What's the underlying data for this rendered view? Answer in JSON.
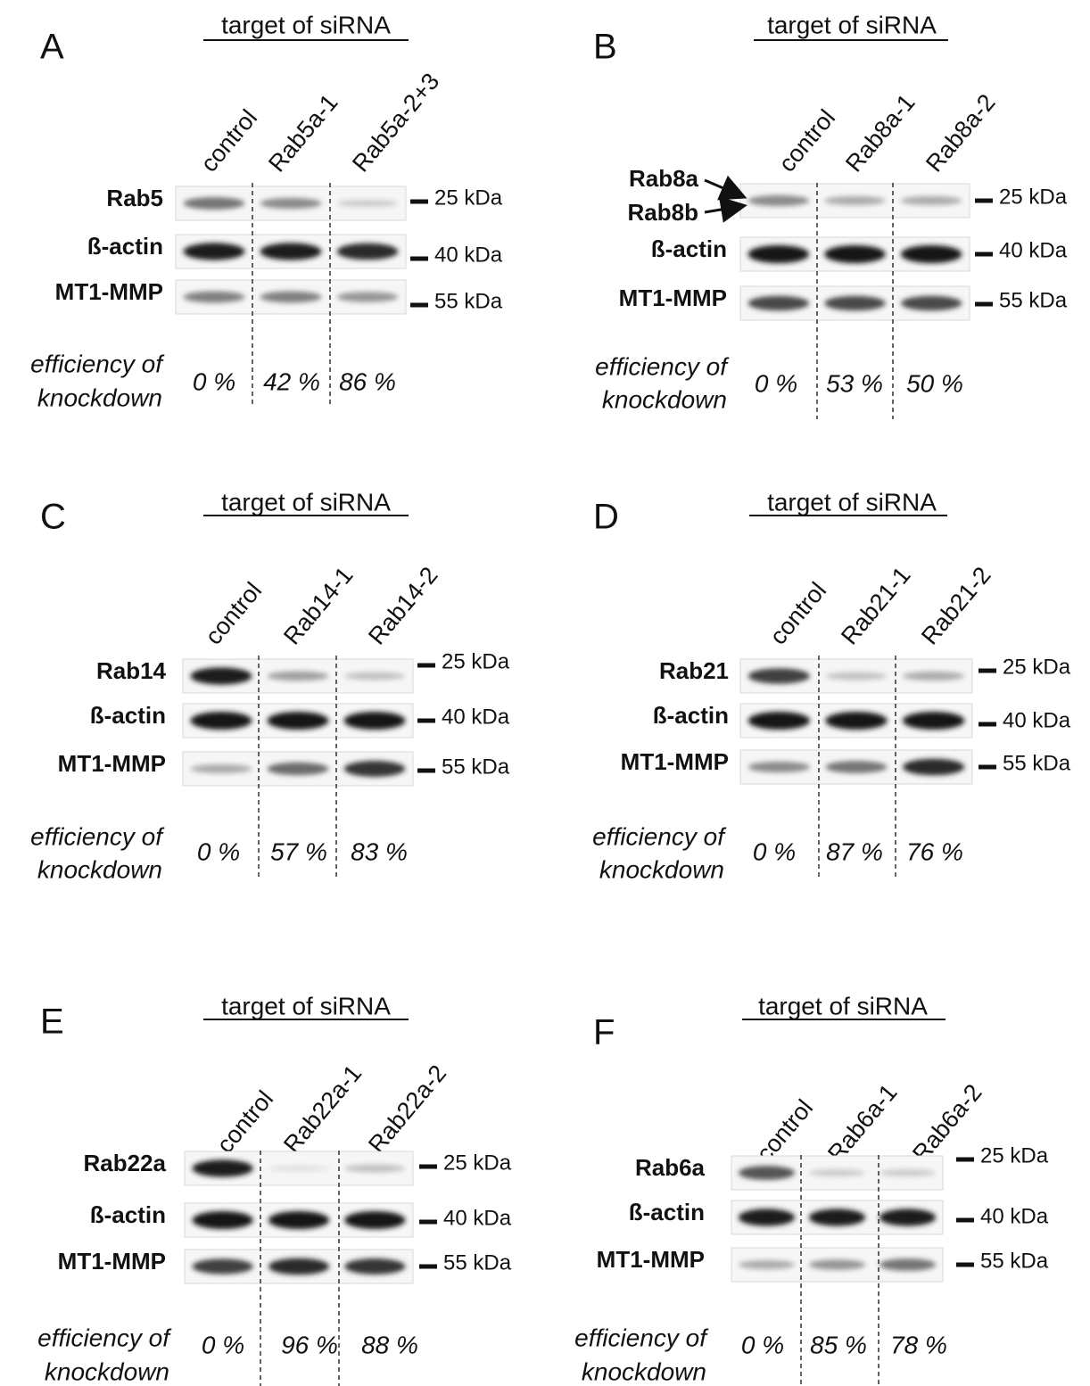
{
  "panels": [
    {
      "letter": "A",
      "header": "target of siRNA",
      "lanes": [
        "control",
        "Rab5a-1",
        "Rab5a-2+3"
      ],
      "rows": [
        {
          "label": "Rab5",
          "marker": "25 kDa"
        },
        {
          "label": "ß-actin",
          "marker": "40 kDa"
        },
        {
          "label": "MT1-MMP",
          "marker": "55 kDa"
        }
      ],
      "efficiency_label": [
        "efficiency of",
        "knockdown"
      ],
      "efficiency": [
        "0 %",
        "42 %",
        "86 %"
      ]
    },
    {
      "letter": "B",
      "header": "target of siRNA",
      "lanes": [
        "control",
        "Rab8a-1",
        "Rab8a-2"
      ],
      "rows": [
        {
          "label": "",
          "marker": "25 kDa"
        },
        {
          "label": "ß-actin",
          "marker": "40 kDa"
        },
        {
          "label": "MT1-MMP",
          "marker": "55 kDa"
        }
      ],
      "annotations": [
        "Rab8a",
        "Rab8b"
      ],
      "efficiency_label": [
        "efficiency of",
        "knockdown"
      ],
      "efficiency": [
        "0 %",
        "53 %",
        "50 %"
      ]
    },
    {
      "letter": "C",
      "header": "target of siRNA",
      "lanes": [
        "control",
        "Rab14-1",
        "Rab14-2"
      ],
      "rows": [
        {
          "label": "Rab14",
          "marker": "25 kDa"
        },
        {
          "label": "ß-actin",
          "marker": "40 kDa"
        },
        {
          "label": "MT1-MMP",
          "marker": "55 kDa"
        }
      ],
      "efficiency_label": [
        "efficiency of",
        "knockdown"
      ],
      "efficiency": [
        "0 %",
        "57 %",
        "83 %"
      ]
    },
    {
      "letter": "D",
      "header": "target of siRNA",
      "lanes": [
        "control",
        "Rab21-1",
        "Rab21-2"
      ],
      "rows": [
        {
          "label": "Rab21",
          "marker": "25 kDa"
        },
        {
          "label": "ß-actin",
          "marker": "40 kDa"
        },
        {
          "label": "MT1-MMP",
          "marker": "55 kDa"
        }
      ],
      "efficiency_label": [
        "efficiency of",
        "knockdown"
      ],
      "efficiency": [
        "0 %",
        "87 %",
        "76 %"
      ]
    },
    {
      "letter": "E",
      "header": "target of siRNA",
      "lanes": [
        "control",
        "Rab22a-1",
        "Rab22a-2"
      ],
      "rows": [
        {
          "label": "Rab22a",
          "marker": "25 kDa"
        },
        {
          "label": "ß-actin",
          "marker": "40 kDa"
        },
        {
          "label": "MT1-MMP",
          "marker": "55 kDa"
        }
      ],
      "efficiency_label": [
        "efficiency of",
        "knockdown"
      ],
      "efficiency": [
        "0 %",
        "96 %",
        "88 %"
      ]
    },
    {
      "letter": "F",
      "header": "target of siRNA",
      "lanes": [
        "control",
        "Rab6a-1",
        "Rab6a-2"
      ],
      "rows": [
        {
          "label": "Rab6a",
          "marker": "25 kDa"
        },
        {
          "label": "ß-actin",
          "marker": "40 kDa"
        },
        {
          "label": "MT1-MMP",
          "marker": "55 kDa"
        }
      ],
      "efficiency_label": [
        "efficiency of",
        "knockdown"
      ],
      "efficiency": [
        "0 %",
        "85 %",
        "78 %"
      ]
    }
  ]
}
